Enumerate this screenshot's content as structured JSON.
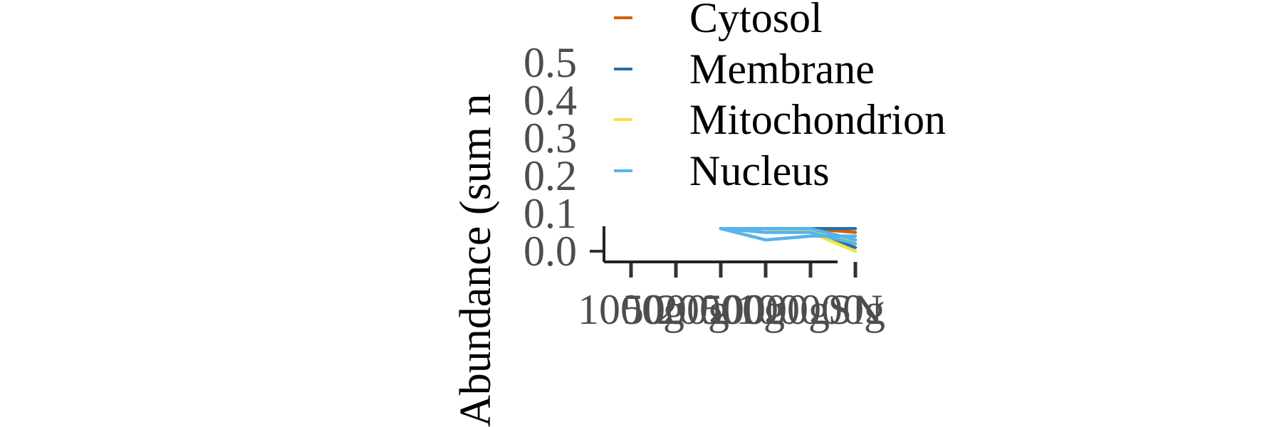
{
  "chart_data": {
    "type": "line",
    "title": "",
    "xlabel": "",
    "ylabel": "Abundance (sum n",
    "categories": [
      "1000g",
      "5000g",
      "20000g",
      "50000g",
      "100000g",
      "SN"
    ],
    "ylim": [
      0,
      0.5
    ],
    "yticks": [
      "0.0",
      "0.1",
      "0.2",
      "0.3",
      "0.4",
      "0.5"
    ],
    "grid": false,
    "legend_position": "top",
    "series": [
      {
        "name": "Cytosol",
        "color": "#d55e00",
        "lines": [
          [
            null,
            null,
            0.06,
            0.06,
            0.06,
            0.05
          ]
        ]
      },
      {
        "name": "Membrane",
        "color": "#2b6ea8",
        "lines": [
          [
            null,
            null,
            0.06,
            0.06,
            0.06,
            0.03
          ],
          [
            null,
            null,
            0.06,
            0.06,
            0.05,
            0.01
          ],
          [
            null,
            null,
            0.06,
            0.06,
            0.06,
            0.06
          ]
        ]
      },
      {
        "name": "Mitochondrion",
        "color": "#f0e442",
        "lines": [
          [
            null,
            null,
            0.06,
            0.06,
            0.05,
            0.0
          ],
          [
            null,
            null,
            0.06,
            0.06,
            0.06,
            0.02
          ]
        ]
      },
      {
        "name": "Nucleus",
        "color": "#56b4e9",
        "lines": [
          [
            null,
            null,
            0.06,
            0.03,
            0.04,
            0.04
          ],
          [
            null,
            null,
            0.06,
            0.06,
            0.06,
            0.03
          ],
          [
            null,
            null,
            0.06,
            0.05,
            0.05,
            0.02
          ]
        ]
      }
    ]
  }
}
